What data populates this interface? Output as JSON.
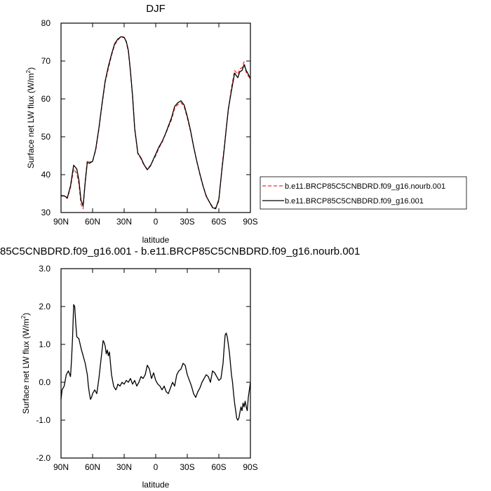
{
  "chart_data": [
    {
      "type": "line",
      "title": "DJF",
      "xlabel": "latitude",
      "ylabel": "Surface net LW flux (W/m",
      "ylabel_sup": "2",
      "ylabel_close": ")",
      "xlim": [
        90,
        -90
      ],
      "ylim": [
        30,
        80
      ],
      "xticks": [
        90,
        60,
        30,
        0,
        -30,
        -60,
        -90
      ],
      "xtick_labels": [
        "90N",
        "60N",
        "30N",
        "0",
        "30S",
        "60S",
        "90S"
      ],
      "yticks": [
        30,
        40,
        50,
        60,
        70,
        80
      ],
      "ytick_labels": [
        "30",
        "40",
        "50",
        "60",
        "70",
        "80"
      ],
      "grid": false,
      "legend_position": "right",
      "series": [
        {
          "name": "b.e11.BRCP85C5CNBDRD.f09_g16.nourb.001",
          "color": "#e8322e",
          "style": "dashed",
          "x": [
            90,
            87,
            84,
            81,
            78,
            75,
            73,
            71,
            69,
            67,
            65,
            63,
            60,
            57,
            54,
            51,
            48,
            45,
            42,
            39,
            36,
            33,
            30,
            28,
            26,
            24,
            22,
            20,
            17,
            14,
            11,
            8,
            5,
            2,
            0,
            -3,
            -6,
            -9,
            -12,
            -15,
            -18,
            -21,
            -24,
            -27,
            -30,
            -33,
            -36,
            -39,
            -42,
            -45,
            -48,
            -51,
            -54,
            -57,
            -60,
            -63,
            -65,
            -67,
            -69,
            -72,
            -75,
            -78,
            -80,
            -82,
            -84,
            -86,
            -88,
            -90
          ],
          "y": [
            34.6,
            34.3,
            33.7,
            36.6,
            41.5,
            40.3,
            37.6,
            32.2,
            31.0,
            38.5,
            43.8,
            43.3,
            43.6,
            46.5,
            52.0,
            58.5,
            64.5,
            68.0,
            71.5,
            74.3,
            75.5,
            76.5,
            76.3,
            75.0,
            72.5,
            67.0,
            60.5,
            52.0,
            45.5,
            44.2,
            42.4,
            41.5,
            42.5,
            44.0,
            45.0,
            47.0,
            48.5,
            50.5,
            52.5,
            54.5,
            57.5,
            58.5,
            59.0,
            58.0,
            55.0,
            51.5,
            47.5,
            43.5,
            40.0,
            37.0,
            34.5,
            32.8,
            31.5,
            31.2,
            33.0,
            42.0,
            47.0,
            52.0,
            57.0,
            63.0,
            67.5,
            66.5,
            68.0,
            68.2,
            69.8,
            67.0,
            66.0,
            65.5
          ]
        },
        {
          "name": "b.e11.BRCP85C5CNBDRD.f09_g16.001",
          "color": "#000000",
          "style": "solid",
          "x": [
            90,
            87,
            84,
            81,
            78,
            75,
            73,
            71,
            69,
            67,
            65,
            63,
            60,
            57,
            54,
            51,
            48,
            45,
            42,
            39,
            36,
            33,
            30,
            28,
            26,
            24,
            22,
            20,
            17,
            14,
            11,
            8,
            5,
            2,
            0,
            -3,
            -6,
            -9,
            -12,
            -15,
            -18,
            -21,
            -24,
            -27,
            -30,
            -33,
            -36,
            -39,
            -42,
            -45,
            -48,
            -51,
            -54,
            -57,
            -60,
            -63,
            -65,
            -67,
            -69,
            -72,
            -75,
            -78,
            -80,
            -82,
            -84,
            -86,
            -88,
            -90
          ],
          "y": [
            34.4,
            34.4,
            33.9,
            37.0,
            42.5,
            41.5,
            38.5,
            33.2,
            31.8,
            38.0,
            43.3,
            43.0,
            43.5,
            46.8,
            52.3,
            58.8,
            64.8,
            68.6,
            71.8,
            74.6,
            75.8,
            76.4,
            76.2,
            75.2,
            72.8,
            67.3,
            60.8,
            52.3,
            45.7,
            44.4,
            42.6,
            41.3,
            42.3,
            44.2,
            45.4,
            47.3,
            48.7,
            50.6,
            52.8,
            55.0,
            58.0,
            59.0,
            59.5,
            58.4,
            55.4,
            51.8,
            47.4,
            43.6,
            40.2,
            37.0,
            34.3,
            32.8,
            31.3,
            31.0,
            33.5,
            41.5,
            46.5,
            52.0,
            57.3,
            62.2,
            66.8,
            65.6,
            67.2,
            67.5,
            69.0,
            67.5,
            66.5,
            65.3
          ]
        }
      ]
    },
    {
      "type": "line",
      "title": "85C5CNBDRD.f09_g16.001 - b.e11.BRCP85C5CNBDRD.f09_g16.nourb.001",
      "xlabel": "latitude",
      "ylabel": "Surface net LW flux (W/m",
      "ylabel_sup": "2",
      "ylabel_close": ")",
      "xlim": [
        90,
        -90
      ],
      "ylim": [
        -2.0,
        3.0
      ],
      "xticks": [
        90,
        60,
        30,
        0,
        -30,
        -60,
        -90
      ],
      "xtick_labels": [
        "90N",
        "60N",
        "30N",
        "0",
        "30S",
        "60S",
        "90S"
      ],
      "yticks": [
        -2,
        -1,
        0,
        1,
        2,
        3
      ],
      "ytick_labels": [
        "-2.0",
        "-1.0",
        "0.0",
        "1.0",
        "2.0",
        "3.0"
      ],
      "grid": false,
      "series": [
        {
          "color": "#000000",
          "style": "solid",
          "x": [
            90,
            89,
            87,
            85,
            83,
            81,
            80,
            79,
            78,
            77,
            76,
            75,
            73,
            71,
            69,
            67,
            65,
            64,
            63,
            62,
            61,
            60,
            58,
            56,
            54,
            52,
            50,
            49,
            48,
            47,
            46,
            45,
            44,
            42,
            40,
            38,
            37,
            36,
            34,
            32,
            30,
            28,
            26,
            24,
            22,
            20,
            18,
            16,
            14,
            12,
            10,
            8,
            6,
            4,
            2,
            0,
            -2,
            -4,
            -6,
            -8,
            -10,
            -12,
            -14,
            -16,
            -18,
            -20,
            -22,
            -24,
            -26,
            -28,
            -30,
            -32,
            -34,
            -36,
            -38,
            -40,
            -42,
            -44,
            -46,
            -48,
            -50,
            -52,
            -54,
            -56,
            -58,
            -60,
            -62,
            -64,
            -65,
            -66,
            -67,
            -68,
            -70,
            -72,
            -73,
            -74,
            -75,
            -76,
            -77,
            -78,
            -79,
            -80,
            -81,
            -82,
            -83,
            -84,
            -85,
            -86,
            -87,
            -88,
            -89,
            -90
          ],
          "y": [
            -0.45,
            -0.2,
            -0.1,
            0.2,
            0.3,
            0.15,
            0.6,
            1.2,
            2.05,
            2.0,
            1.55,
            1.2,
            1.15,
            0.9,
            0.7,
            0.5,
            0.2,
            -0.1,
            -0.3,
            -0.45,
            -0.4,
            -0.3,
            -0.2,
            -0.3,
            0.1,
            0.6,
            1.1,
            1.05,
            0.95,
            0.75,
            0.85,
            0.7,
            0.8,
            0.2,
            -0.1,
            -0.2,
            -0.15,
            -0.05,
            -0.1,
            0.0,
            -0.05,
            0.05,
            0.0,
            0.1,
            -0.05,
            0.05,
            -0.1,
            0.0,
            0.15,
            0.1,
            0.2,
            0.45,
            0.35,
            0.1,
            0.25,
            0.05,
            -0.05,
            -0.1,
            -0.2,
            -0.1,
            -0.25,
            -0.3,
            -0.15,
            0.0,
            -0.1,
            0.2,
            0.3,
            0.35,
            0.5,
            0.45,
            0.2,
            0.05,
            -0.1,
            -0.3,
            -0.4,
            -0.25,
            -0.15,
            0.0,
            0.1,
            0.2,
            0.15,
            0.0,
            0.3,
            0.25,
            0.15,
            0.05,
            0.1,
            0.5,
            0.9,
            1.25,
            1.3,
            1.2,
            0.8,
            0.2,
            0.0,
            -0.3,
            -0.55,
            -0.75,
            -0.95,
            -1.0,
            -0.95,
            -0.8,
            -0.65,
            -0.75,
            -0.55,
            -0.65,
            -0.5,
            -0.65,
            -0.75,
            -0.4,
            -0.2,
            0.0
          ]
        }
      ]
    }
  ]
}
